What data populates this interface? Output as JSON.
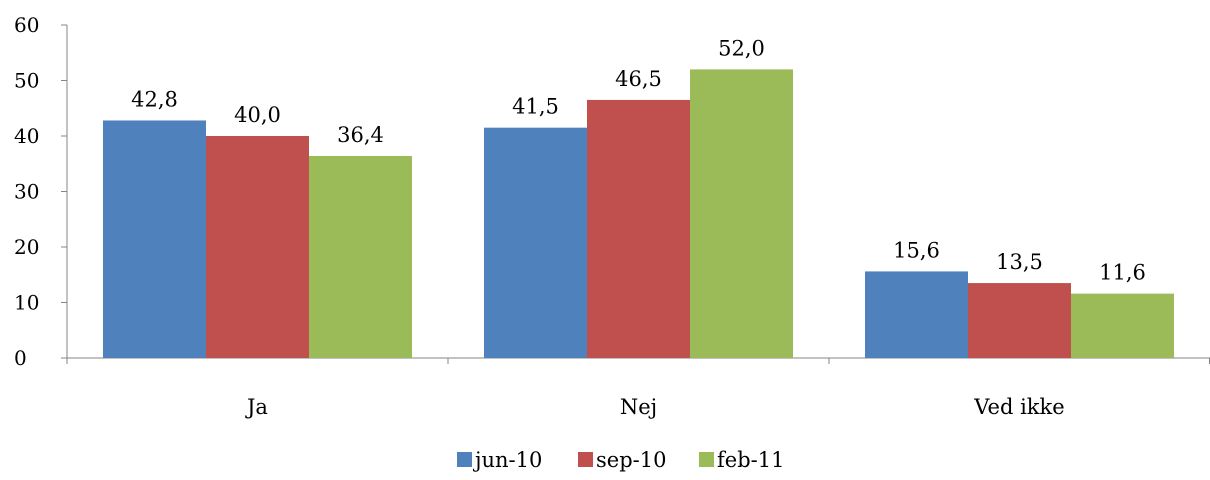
{
  "chart_data": {
    "type": "bar",
    "title": "",
    "xlabel": "",
    "ylabel": "",
    "ylim": [
      0,
      60
    ],
    "yticks": [
      0,
      10,
      20,
      30,
      40,
      50,
      60
    ],
    "grid": false,
    "legend_position": "bottom",
    "categories": [
      "Ja",
      "Nej",
      "Ved ikke"
    ],
    "series": [
      {
        "name": "jun-10",
        "color": "#4F81BD",
        "values": [
          42.8,
          41.5,
          15.6
        ],
        "labels": [
          "42,8",
          "41,5",
          "15,6"
        ]
      },
      {
        "name": "sep-10",
        "color": "#C0504D",
        "values": [
          40.0,
          46.5,
          13.5
        ],
        "labels": [
          "40,0",
          "46,5",
          "13,5"
        ]
      },
      {
        "name": "feb-11",
        "color": "#9BBB59",
        "values": [
          36.4,
          52.0,
          11.6
        ],
        "labels": [
          "36,4",
          "52,0",
          "11,6"
        ]
      }
    ]
  }
}
